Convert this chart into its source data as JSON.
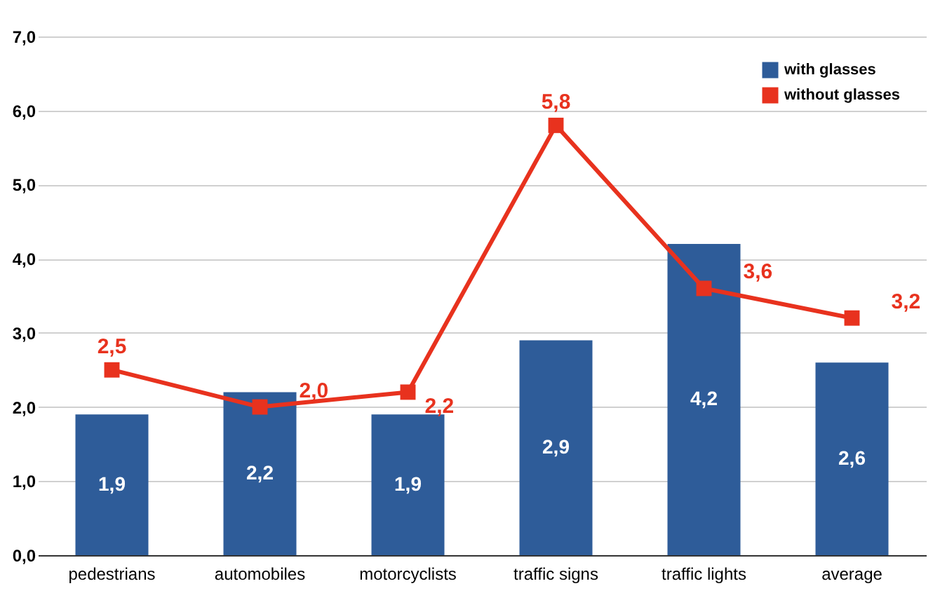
{
  "chart_data": {
    "type": "bar",
    "categories": [
      "pedestrians",
      "automobiles",
      "motorcyclists",
      "traffic signs",
      "traffic lights",
      "average"
    ],
    "series": [
      {
        "name": "with glasses",
        "color": "#2e5c99",
        "values": [
          1.9,
          2.2,
          1.9,
          2.9,
          4.2,
          2.6
        ],
        "value_labels": [
          "1,9",
          "2,2",
          "1,9",
          "2,9",
          "4,2",
          "2,6"
        ]
      },
      {
        "name": "without glasses",
        "type": "line",
        "color": "#e8321e",
        "values": [
          2.5,
          2.0,
          2.2,
          5.8,
          3.6,
          3.2
        ],
        "value_labels": [
          "2,5",
          "2,0",
          "2,2",
          "5,8",
          "3,6",
          "3,2"
        ],
        "marker": "square",
        "line_style": "solid"
      }
    ],
    "ylim": [
      0,
      7
    ],
    "yticks": [
      {
        "value": 0,
        "label": "0,0"
      },
      {
        "value": 1,
        "label": "1,0"
      },
      {
        "value": 2,
        "label": "2,0"
      },
      {
        "value": 3,
        "label": "3,0"
      },
      {
        "value": 4,
        "label": "4,0"
      },
      {
        "value": 5,
        "label": "5,0"
      },
      {
        "value": 6,
        "label": "6,0"
      },
      {
        "value": 7,
        "label": "7,0"
      }
    ],
    "grid": "y",
    "legend": "top right"
  }
}
